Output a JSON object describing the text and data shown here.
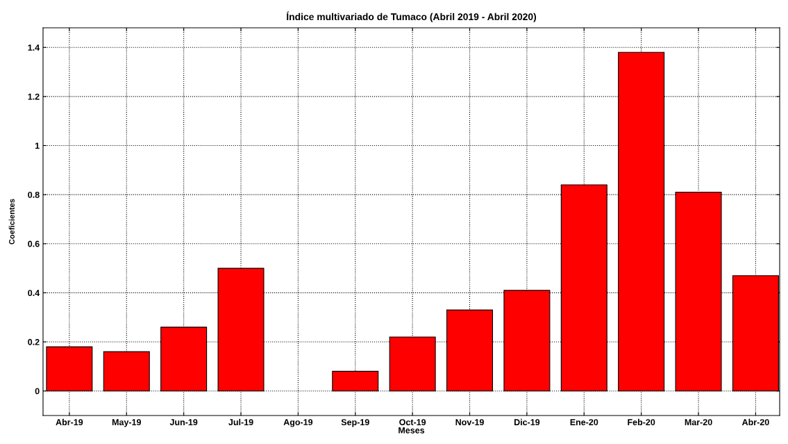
{
  "chart_data": {
    "type": "bar",
    "title": "Índice multivariado de Tumaco (Abril 2019 - Abril 2020)",
    "xlabel": "Meses",
    "ylabel": "Coeficientes",
    "categories": [
      "Abr-19",
      "May-19",
      "Jun-19",
      "Jul-19",
      "Ago-19",
      "Sep-19",
      "Oct-19",
      "Nov-19",
      "Dic-19",
      "Ene-20",
      "Feb-20",
      "Mar-20",
      "Abr-20"
    ],
    "values": [
      0.18,
      0.16,
      0.26,
      0.5,
      null,
      0.08,
      0.22,
      0.33,
      0.41,
      0.84,
      1.38,
      0.81,
      0.47
    ],
    "color": "#ff0000",
    "ylim": [
      -0.1,
      1.48
    ],
    "yticks": [
      0,
      0.2,
      0.4,
      0.6,
      0.8,
      1,
      1.2,
      1.4
    ],
    "grid": true
  }
}
